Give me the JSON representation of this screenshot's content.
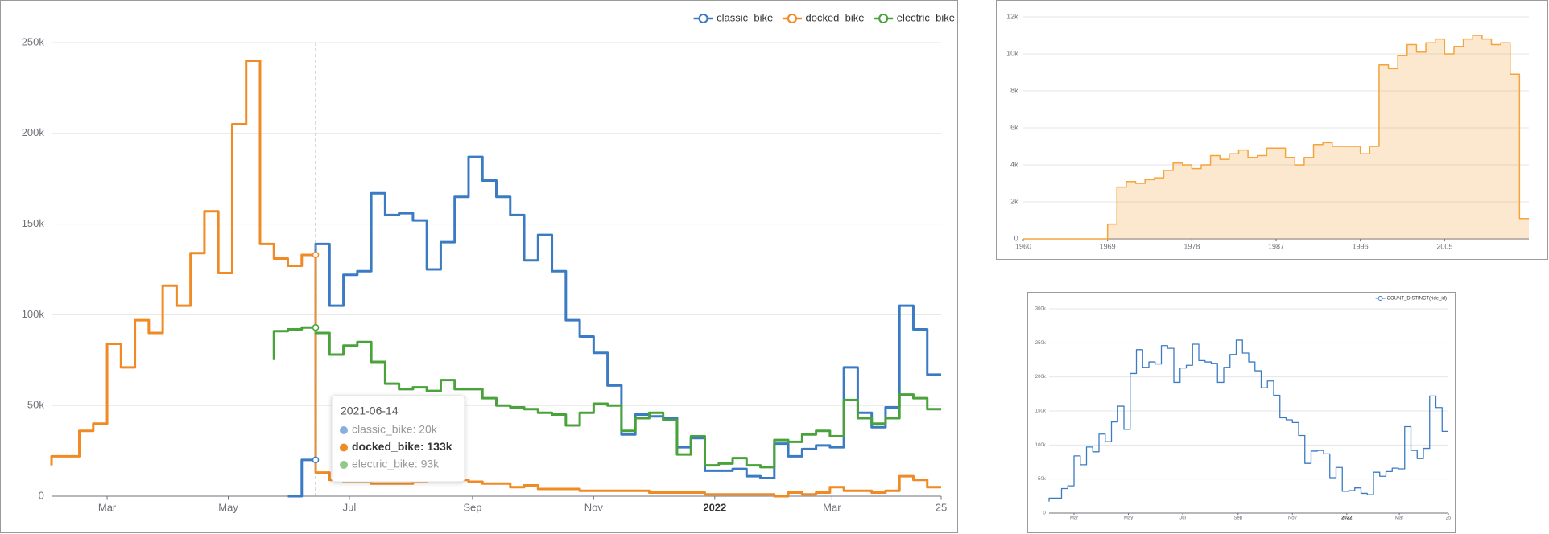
{
  "chart_data": [
    {
      "type": "line",
      "step": "start",
      "grid": true,
      "legend": "top-right",
      "x": [
        "2021-02-01",
        "2021-02-08",
        "2021-02-15",
        "2021-02-22",
        "2021-03-01",
        "2021-03-08",
        "2021-03-15",
        "2021-03-22",
        "2021-03-29",
        "2021-04-05",
        "2021-04-12",
        "2021-04-19",
        "2021-04-26",
        "2021-05-03",
        "2021-05-10",
        "2021-05-17",
        "2021-05-24",
        "2021-05-31",
        "2021-06-07",
        "2021-06-14",
        "2021-06-21",
        "2021-06-28",
        "2021-07-05",
        "2021-07-12",
        "2021-07-19",
        "2021-07-26",
        "2021-08-02",
        "2021-08-09",
        "2021-08-16",
        "2021-08-23",
        "2021-08-30",
        "2021-09-06",
        "2021-09-13",
        "2021-09-20",
        "2021-09-27",
        "2021-10-04",
        "2021-10-11",
        "2021-10-18",
        "2021-10-25",
        "2021-11-01",
        "2021-11-08",
        "2021-11-15",
        "2021-11-22",
        "2021-11-29",
        "2021-12-06",
        "2021-12-13",
        "2021-12-20",
        "2021-12-27",
        "2022-01-03",
        "2022-01-10",
        "2022-01-17",
        "2022-01-24",
        "2022-01-31",
        "2022-02-07",
        "2022-02-14",
        "2022-02-21",
        "2022-02-28",
        "2022-03-07",
        "2022-03-14",
        "2022-03-21",
        "2022-03-28",
        "2022-04-04",
        "2022-04-11",
        "2022-04-18",
        "2022-04-25"
      ],
      "series": [
        {
          "name": "classic_bike",
          "color": "#3b7bc4",
          "values": [
            null,
            null,
            null,
            null,
            null,
            null,
            null,
            null,
            null,
            null,
            null,
            null,
            null,
            null,
            null,
            null,
            null,
            0,
            0,
            20000,
            139000,
            105000,
            122000,
            124000,
            167000,
            155000,
            156000,
            152000,
            125000,
            140000,
            165000,
            187000,
            174000,
            165000,
            155000,
            130000,
            144000,
            124000,
            97000,
            88000,
            79000,
            61000,
            34000,
            45000,
            44000,
            43000,
            27000,
            32000,
            14000,
            14000,
            15000,
            11000,
            10000,
            29000,
            22000,
            26000,
            28000,
            27000,
            71000,
            46000,
            38000,
            49000,
            105000,
            92000,
            67000
          ]
        },
        {
          "name": "docked_bike",
          "color": "#f08a24",
          "values": [
            17000,
            22000,
            22000,
            36000,
            40000,
            84000,
            71000,
            97000,
            90000,
            116000,
            105000,
            134000,
            157000,
            123000,
            205000,
            240000,
            139000,
            131000,
            127000,
            133000,
            13000,
            9000,
            8000,
            8000,
            7000,
            7000,
            7000,
            8000,
            9000,
            10000,
            9000,
            8000,
            7000,
            7000,
            5000,
            6000,
            4000,
            4000,
            4000,
            3000,
            3000,
            3000,
            3000,
            3000,
            2000,
            2000,
            2000,
            2000,
            1000,
            1000,
            1000,
            1000,
            1000,
            0,
            2000,
            1000,
            2000,
            5000,
            3000,
            3000,
            2000,
            3000,
            11000,
            9000,
            5000
          ]
        },
        {
          "name": "electric_bike",
          "color": "#4aa33a",
          "values": [
            null,
            null,
            null,
            null,
            null,
            null,
            null,
            null,
            null,
            null,
            null,
            null,
            null,
            null,
            null,
            null,
            75000,
            91000,
            92000,
            93000,
            90000,
            78000,
            83000,
            85000,
            74000,
            62000,
            59000,
            60000,
            58000,
            64000,
            59000,
            59000,
            54000,
            50000,
            49000,
            48000,
            46000,
            45000,
            39000,
            46000,
            51000,
            50000,
            36000,
            43000,
            46000,
            42000,
            23000,
            33000,
            17000,
            18000,
            21000,
            17000,
            16000,
            31000,
            30000,
            34000,
            36000,
            33000,
            53000,
            43000,
            40000,
            43000,
            56000,
            54000,
            48000
          ]
        }
      ],
      "xlim": [
        "2021-02-01",
        "2022-04-25"
      ],
      "xticks": [
        {
          "value": "2021-03-01",
          "label": "Mar"
        },
        {
          "value": "2021-05-01",
          "label": "May"
        },
        {
          "value": "2021-07-01",
          "label": "Jul"
        },
        {
          "value": "2021-09-01",
          "label": "Sep"
        },
        {
          "value": "2021-11-01",
          "label": "Nov"
        },
        {
          "value": "2022-01-01",
          "label": "2022"
        },
        {
          "value": "2022-03-01",
          "label": "Mar"
        },
        {
          "value": "2022-04-25",
          "label": "25"
        }
      ],
      "ylim": [
        0,
        250000
      ],
      "yticks": [
        0,
        {
          "value": 50000,
          "label": "50k"
        },
        {
          "value": 100000,
          "label": "100k"
        },
        {
          "value": 150000,
          "label": "150k"
        },
        {
          "value": 200000,
          "label": "200k"
        },
        {
          "value": 250000,
          "label": "250k"
        }
      ],
      "tooltip": {
        "title": "2021-06-14",
        "emphasis": "docked_bike",
        "items": [
          "classic_bike: 20k",
          "docked_bike: 133k",
          "electric_bike: 93k"
        ]
      }
    },
    {
      "type": "area",
      "step": "end",
      "grid": true,
      "color": "#f5a33a",
      "x": [
        1960,
        1961,
        1962,
        1963,
        1964,
        1965,
        1966,
        1967,
        1968,
        1969,
        1970,
        1971,
        1972,
        1973,
        1974,
        1975,
        1976,
        1977,
        1978,
        1979,
        1980,
        1981,
        1982,
        1983,
        1984,
        1985,
        1986,
        1987,
        1988,
        1989,
        1990,
        1991,
        1992,
        1993,
        1994,
        1995,
        1996,
        1997,
        1998,
        1999,
        2000,
        2001,
        2002,
        2003,
        2004,
        2005,
        2006,
        2007,
        2008,
        2009,
        2010,
        2011,
        2012,
        2013
      ],
      "values": [
        0,
        0,
        0,
        0,
        0,
        0,
        0,
        0,
        0,
        800,
        2800,
        3100,
        3000,
        3200,
        3300,
        3700,
        4100,
        4000,
        3800,
        4000,
        4500,
        4300,
        4600,
        4800,
        4400,
        4500,
        4900,
        4900,
        4400,
        4000,
        4400,
        5100,
        5200,
        5000,
        5000,
        5000,
        4600,
        5000,
        9400,
        9200,
        9900,
        10500,
        10100,
        10600,
        10800,
        10000,
        10400,
        10800,
        11000,
        10800,
        10500,
        10600,
        8900,
        1100
      ],
      "xlim": [
        1960,
        2014
      ],
      "xticks": [
        1960,
        1969,
        1978,
        1987,
        1996,
        2005
      ],
      "ylim": [
        0,
        12000
      ],
      "yticks": [
        0,
        {
          "value": 2000,
          "label": "2k"
        },
        {
          "value": 4000,
          "label": "4k"
        },
        {
          "value": 6000,
          "label": "6k"
        },
        {
          "value": 8000,
          "label": "8k"
        },
        {
          "value": 10000,
          "label": "10k"
        },
        {
          "value": 12000,
          "label": "12k"
        }
      ]
    },
    {
      "type": "line",
      "step": "start",
      "grid": true,
      "legend": "top-right",
      "x": [
        "2021-02-01",
        "2021-02-08",
        "2021-02-15",
        "2021-02-22",
        "2021-03-01",
        "2021-03-08",
        "2021-03-15",
        "2021-03-22",
        "2021-03-29",
        "2021-04-05",
        "2021-04-12",
        "2021-04-19",
        "2021-04-26",
        "2021-05-03",
        "2021-05-10",
        "2021-05-17",
        "2021-05-24",
        "2021-05-31",
        "2021-06-07",
        "2021-06-14",
        "2021-06-21",
        "2021-06-28",
        "2021-07-05",
        "2021-07-12",
        "2021-07-19",
        "2021-07-26",
        "2021-08-02",
        "2021-08-09",
        "2021-08-16",
        "2021-08-23",
        "2021-08-30",
        "2021-09-06",
        "2021-09-13",
        "2021-09-20",
        "2021-09-27",
        "2021-10-04",
        "2021-10-11",
        "2021-10-18",
        "2021-10-25",
        "2021-11-01",
        "2021-11-08",
        "2021-11-15",
        "2021-11-22",
        "2021-11-29",
        "2021-12-06",
        "2021-12-13",
        "2021-12-20",
        "2021-12-27",
        "2022-01-03",
        "2022-01-10",
        "2022-01-17",
        "2022-01-24",
        "2022-01-31",
        "2022-02-07",
        "2022-02-14",
        "2022-02-21",
        "2022-02-28",
        "2022-03-07",
        "2022-03-14",
        "2022-03-21",
        "2022-03-28",
        "2022-04-04",
        "2022-04-11",
        "2022-04-18",
        "2022-04-25"
      ],
      "series": [
        {
          "name": "COUNT_DISTINCT(ride_id)",
          "color": "#3b7bc4",
          "values": [
            17000,
            22000,
            22000,
            36000,
            40000,
            84000,
            71000,
            97000,
            90000,
            116000,
            105000,
            134000,
            157000,
            123000,
            205000,
            240000,
            214000,
            222000,
            219000,
            246000,
            242000,
            192000,
            213000,
            217000,
            248000,
            224000,
            222000,
            220000,
            192000,
            214000,
            233000,
            254000,
            235000,
            222000,
            209000,
            184000,
            194000,
            173000,
            140000,
            137000,
            133000,
            114000,
            73000,
            91000,
            92000,
            87000,
            52000,
            67000,
            32000,
            33000,
            37000,
            29000,
            27000,
            60000,
            54000,
            61000,
            66000,
            65000,
            127000,
            92000,
            80000,
            95000,
            172000,
            155000,
            120000
          ]
        }
      ],
      "xlim": [
        "2021-02-01",
        "2022-04-25"
      ],
      "xticks": [
        {
          "value": "2021-03-01",
          "label": "Mar"
        },
        {
          "value": "2021-05-01",
          "label": "May"
        },
        {
          "value": "2021-07-01",
          "label": "Jul"
        },
        {
          "value": "2021-09-01",
          "label": "Sep"
        },
        {
          "value": "2021-11-01",
          "label": "Nov"
        },
        {
          "value": "2022-01-01",
          "label": "2022"
        },
        {
          "value": "2022-03-01",
          "label": "Mar"
        },
        {
          "value": "2022-04-25",
          "label": "25"
        }
      ],
      "ylim": [
        0,
        300000
      ],
      "yticks": [
        0,
        {
          "value": 50000,
          "label": "50k"
        },
        {
          "value": 100000,
          "label": "100k"
        },
        {
          "value": 150000,
          "label": "150k"
        },
        {
          "value": 200000,
          "label": "200k"
        },
        {
          "value": 250000,
          "label": "250k"
        },
        {
          "value": 300000,
          "label": "300k"
        }
      ]
    }
  ]
}
